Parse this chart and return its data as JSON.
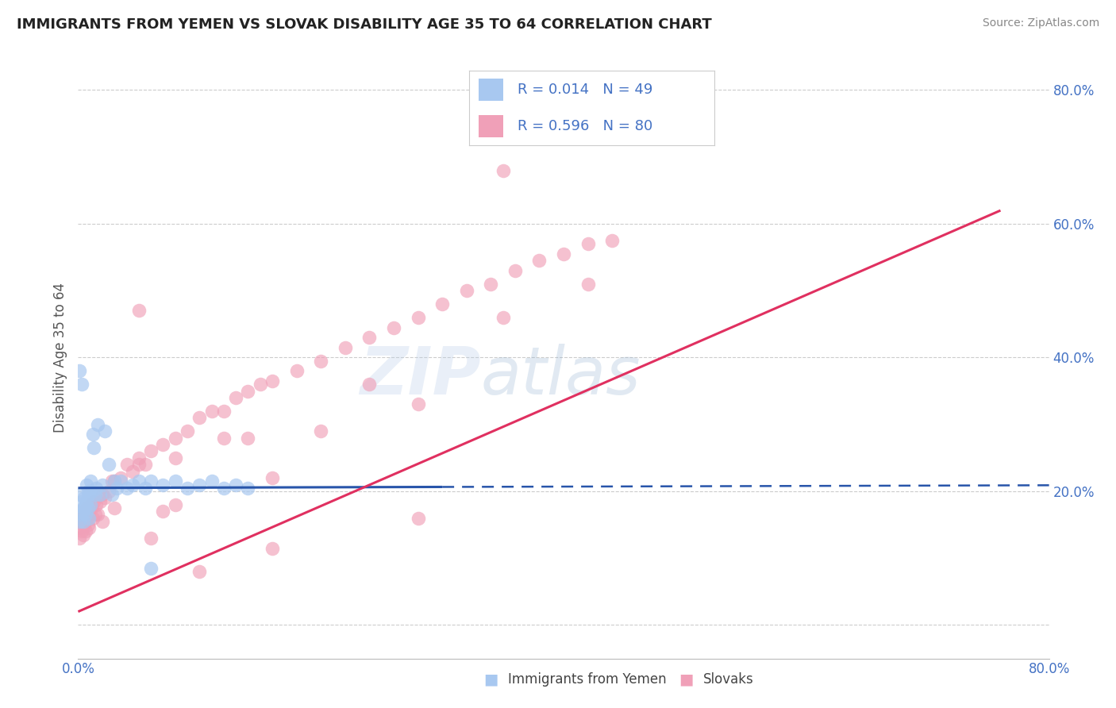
{
  "title": "IMMIGRANTS FROM YEMEN VS SLOVAK DISABILITY AGE 35 TO 64 CORRELATION CHART",
  "source": "Source: ZipAtlas.com",
  "ylabel": "Disability Age 35 to 64",
  "xlim": [
    0.0,
    0.8
  ],
  "ylim": [
    -0.05,
    0.85
  ],
  "y_ticks": [
    0.0,
    0.2,
    0.4,
    0.6,
    0.8
  ],
  "y_tick_labels": [
    "",
    "20.0%",
    "40.0%",
    "60.0%",
    "80.0%"
  ],
  "x_ticks": [
    0.0,
    0.8
  ],
  "x_tick_labels": [
    "0.0%",
    "80.0%"
  ],
  "color_blue": "#A8C8F0",
  "color_pink": "#F0A0B8",
  "color_line_blue": "#2855AA",
  "color_line_pink": "#E03060",
  "color_text_blue": "#4472C4",
  "watermark_text": "ZIPatlas",
  "background_color": "#FFFFFF",
  "grid_color": "#CCCCCC",
  "yemen_x": [
    0.001,
    0.002,
    0.002,
    0.003,
    0.003,
    0.004,
    0.004,
    0.005,
    0.005,
    0.006,
    0.006,
    0.007,
    0.007,
    0.008,
    0.008,
    0.009,
    0.009,
    0.01,
    0.01,
    0.011,
    0.012,
    0.013,
    0.014,
    0.015,
    0.016,
    0.018,
    0.02,
    0.022,
    0.025,
    0.028,
    0.03,
    0.032,
    0.035,
    0.04,
    0.045,
    0.05,
    0.055,
    0.06,
    0.07,
    0.08,
    0.09,
    0.1,
    0.11,
    0.12,
    0.13,
    0.14,
    0.001,
    0.003,
    0.06
  ],
  "yemen_y": [
    0.155,
    0.17,
    0.195,
    0.165,
    0.185,
    0.175,
    0.155,
    0.19,
    0.175,
    0.18,
    0.165,
    0.21,
    0.185,
    0.2,
    0.175,
    0.195,
    0.16,
    0.215,
    0.18,
    0.2,
    0.285,
    0.265,
    0.195,
    0.205,
    0.3,
    0.195,
    0.21,
    0.29,
    0.24,
    0.195,
    0.215,
    0.205,
    0.215,
    0.205,
    0.21,
    0.215,
    0.205,
    0.215,
    0.21,
    0.215,
    0.205,
    0.21,
    0.215,
    0.205,
    0.21,
    0.205,
    0.38,
    0.36,
    0.085
  ],
  "slovak_x": [
    0.001,
    0.002,
    0.002,
    0.003,
    0.003,
    0.004,
    0.004,
    0.005,
    0.005,
    0.006,
    0.006,
    0.007,
    0.007,
    0.008,
    0.008,
    0.009,
    0.009,
    0.01,
    0.011,
    0.012,
    0.013,
    0.014,
    0.015,
    0.016,
    0.018,
    0.02,
    0.022,
    0.025,
    0.028,
    0.03,
    0.035,
    0.04,
    0.045,
    0.05,
    0.055,
    0.06,
    0.07,
    0.08,
    0.09,
    0.1,
    0.11,
    0.12,
    0.13,
    0.14,
    0.15,
    0.16,
    0.18,
    0.2,
    0.22,
    0.24,
    0.26,
    0.28,
    0.3,
    0.32,
    0.34,
    0.36,
    0.38,
    0.4,
    0.42,
    0.44,
    0.03,
    0.05,
    0.02,
    0.28,
    0.35,
    0.06,
    0.07,
    0.08,
    0.12,
    0.14,
    0.16,
    0.2,
    0.24,
    0.05,
    0.08,
    0.42,
    0.35,
    0.28,
    0.16,
    0.1
  ],
  "slovak_y": [
    0.13,
    0.145,
    0.155,
    0.14,
    0.16,
    0.15,
    0.135,
    0.165,
    0.15,
    0.155,
    0.14,
    0.175,
    0.16,
    0.17,
    0.15,
    0.165,
    0.145,
    0.18,
    0.175,
    0.16,
    0.185,
    0.165,
    0.18,
    0.165,
    0.185,
    0.195,
    0.19,
    0.2,
    0.215,
    0.215,
    0.22,
    0.24,
    0.23,
    0.25,
    0.24,
    0.26,
    0.27,
    0.28,
    0.29,
    0.31,
    0.32,
    0.32,
    0.34,
    0.35,
    0.36,
    0.365,
    0.38,
    0.395,
    0.415,
    0.43,
    0.445,
    0.46,
    0.48,
    0.5,
    0.51,
    0.53,
    0.545,
    0.555,
    0.57,
    0.575,
    0.175,
    0.24,
    0.155,
    0.33,
    0.68,
    0.13,
    0.17,
    0.25,
    0.28,
    0.28,
    0.22,
    0.29,
    0.36,
    0.47,
    0.18,
    0.51,
    0.46,
    0.16,
    0.115,
    0.08
  ],
  "blue_trend_solid_end": 0.3,
  "blue_trend_y_intercept": 0.205,
  "blue_trend_slope": 0.005,
  "pink_trend_start_y": 0.02,
  "pink_trend_end_y": 0.62,
  "pink_trend_start_x": 0.0,
  "pink_trend_end_x": 0.76
}
